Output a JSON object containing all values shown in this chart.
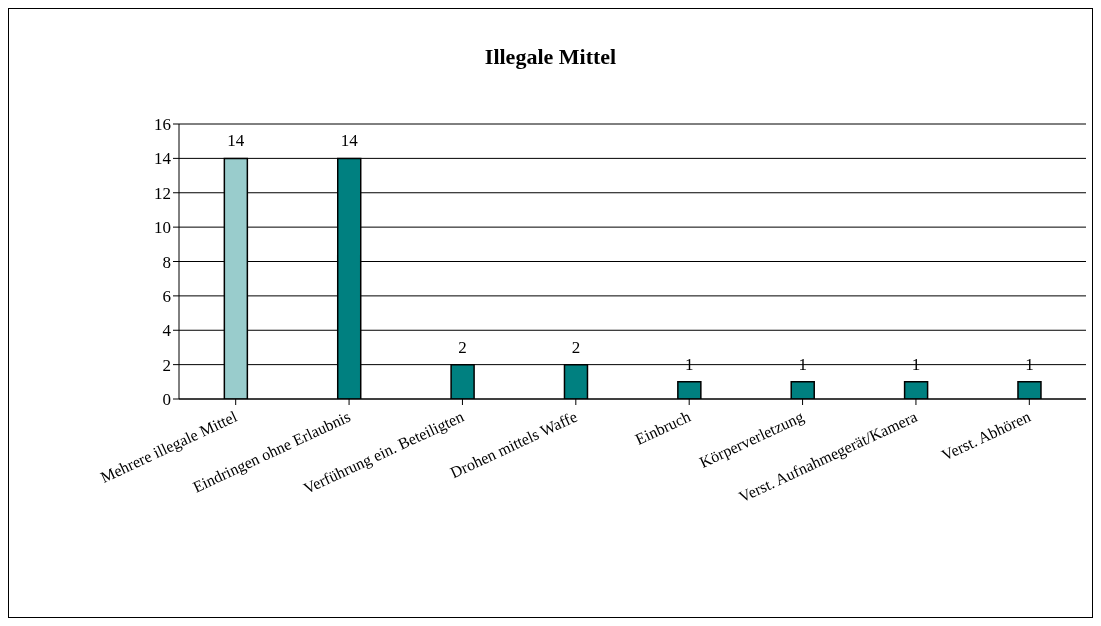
{
  "chart_data": {
    "type": "bar",
    "title": "Illegale Mittel",
    "categories": [
      "Mehrere illegale Mittel",
      "Eindringen ohne Erlaubnis",
      "Verführung ein. Beteiligten",
      "Drohen mittels Waffe",
      "Einbruch",
      "Körperverletzung",
      "Verst. Aufnahmegerät/Kamera",
      "Verst. Abhören"
    ],
    "values": [
      14,
      14,
      2,
      2,
      1,
      1,
      1,
      1
    ],
    "colors": [
      "#99cccc",
      "#008080",
      "#008080",
      "#008080",
      "#008080",
      "#008080",
      "#008080",
      "#008080"
    ],
    "ylim": [
      0,
      16
    ],
    "yticks": [
      0,
      2,
      4,
      6,
      8,
      10,
      12,
      14,
      16
    ],
    "grid": "y",
    "data_labels": true,
    "legend": false
  }
}
